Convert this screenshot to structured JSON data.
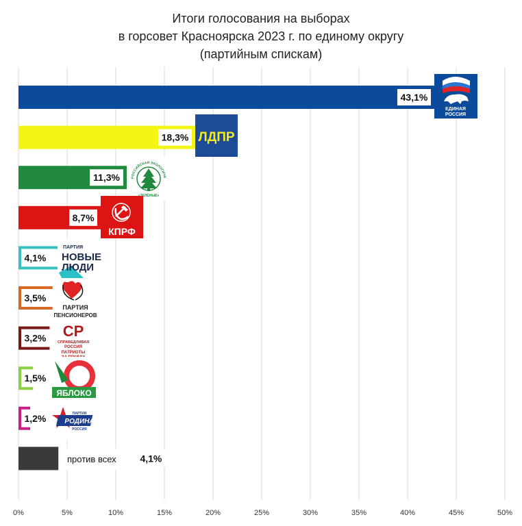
{
  "title_lines": [
    "Итоги голосования на выборах",
    "в горсовет Красноярска 2023 г. по единому округу",
    "(партийным спискам)"
  ],
  "chart_data": {
    "type": "bar",
    "orientation": "horizontal",
    "title": "Итоги голосования на выборах в горсовет Красноярска 2023 г. по единому округу (партийным спискам)",
    "xlabel": "",
    "ylabel": "",
    "xlim": [
      0,
      50
    ],
    "x_ticks": [
      "0%",
      "5%",
      "10%",
      "15%",
      "20%",
      "25%",
      "30%",
      "35%",
      "40%",
      "45%",
      "50%"
    ],
    "grid": "vertical",
    "categories": [
      "ЕДИНАЯ РОССИЯ",
      "ЛДПР",
      "ЗЕЛЁНЫЕ",
      "КПРФ",
      "НОВЫЕ ЛЮДИ",
      "ПАРТИЯ ПЕНСИОНЕРОВ",
      "СПРАВЕДЛИВАЯ РОССИЯ ПАТРИОТЫ ЗА ПРАВДУ",
      "ЯБЛОКО",
      "РОДИНА",
      "против всех"
    ],
    "values": [
      43.1,
      18.3,
      11.3,
      8.7,
      4.1,
      3.5,
      3.2,
      1.5,
      1.2,
      4.1
    ],
    "value_labels": [
      "43,1%",
      "18,3%",
      "11,3%",
      "8,7%",
      "4,1%",
      "3,5%",
      "3,2%",
      "1,5%",
      "1,2%",
      "4,1%"
    ],
    "colors": [
      "#0c4b9c",
      "#f5f515",
      "#218a3c",
      "#dd1414",
      "#36c0c0",
      "#d56a28",
      "#7a1818",
      "#8ad042",
      "#cc1f86",
      "#3a3a3a"
    ],
    "bar_style": [
      "filled",
      "filled",
      "filled",
      "filled",
      "outline",
      "outline",
      "outline",
      "outline",
      "outline",
      "filled"
    ]
  },
  "logos": {
    "er": [
      "ЕДИНАЯ",
      "РОССИЯ"
    ],
    "ldpr": "ЛДПР",
    "green_ring": "РОССИЙСКАЯ ЭКОЛОГИЧЕСКАЯ ПАРТИЯ",
    "green_name": "«ЗЕЛЁНЫЕ»",
    "kprf": "КПРФ",
    "nl_top": "ПАРТИЯ",
    "nl_lines": [
      "НОВЫЕ",
      "ЛЮДИ"
    ],
    "pp_lines": [
      "ПАРТИЯ",
      "ПЕНСИОНЕРОВ"
    ],
    "sr_mark": "СР",
    "sr_lines": [
      "СПРАВЕДЛИВАЯ",
      "РОССИЯ",
      "ПАТРИОТЫ",
      "ЗА ПРАВДУ"
    ],
    "yabloko": "ЯБЛОКО",
    "rodina_top": "ПАРТИЯ",
    "rodina": "РОДИНА",
    "rodina_bottom": "РОССИЯ"
  },
  "against_label": "против всех",
  "colors": {
    "grid": "#d9d9d9",
    "label_bg": "#ffffff"
  }
}
